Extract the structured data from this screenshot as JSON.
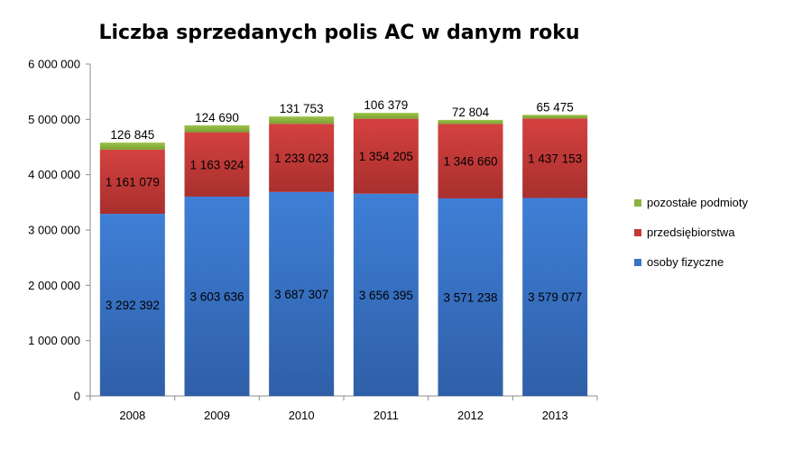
{
  "chart_data": {
    "type": "bar",
    "stacked": true,
    "title": "Liczba sprzedanych polis AC w danym roku",
    "categories": [
      "2008",
      "2009",
      "2010",
      "2011",
      "2012",
      "2013"
    ],
    "series": [
      {
        "name": "osoby fizyczne",
        "color": "#3a73c4",
        "values": [
          3292392,
          3603636,
          3687307,
          3656395,
          3571238,
          3579077
        ],
        "labels": [
          "3 292 392",
          "3 603 636",
          "3 687 307",
          "3 656 395",
          "3 571 238",
          "3 579 077"
        ]
      },
      {
        "name": "przedsiębiorstwa",
        "color": "#c33a38",
        "values": [
          1161079,
          1163924,
          1233023,
          1354205,
          1346660,
          1437153
        ],
        "labels": [
          "1 161 079",
          "1 163 924",
          "1 233 023",
          "1 354 205",
          "1 346 660",
          "1 437 153"
        ]
      },
      {
        "name": "pozostałe podmioty",
        "color": "#8db33e",
        "values": [
          126845,
          124690,
          131753,
          106379,
          72804,
          65475
        ],
        "labels": [
          "126 845",
          "124 690",
          "131 753",
          "106 379",
          "72 804",
          "65 475"
        ]
      }
    ],
    "yticks": [
      0,
      1000000,
      2000000,
      3000000,
      4000000,
      5000000,
      6000000
    ],
    "ytick_labels": [
      "0",
      "1 000 000",
      "2 000 000",
      "3 000 000",
      "4 000 000",
      "5 000 000",
      "6 000 000"
    ],
    "ylim": [
      0,
      6000000
    ],
    "grid": false,
    "legend_position": "right",
    "legend_order": [
      "pozostałe podmioty",
      "przedsiębiorstwa",
      "osoby fizyczne"
    ]
  }
}
